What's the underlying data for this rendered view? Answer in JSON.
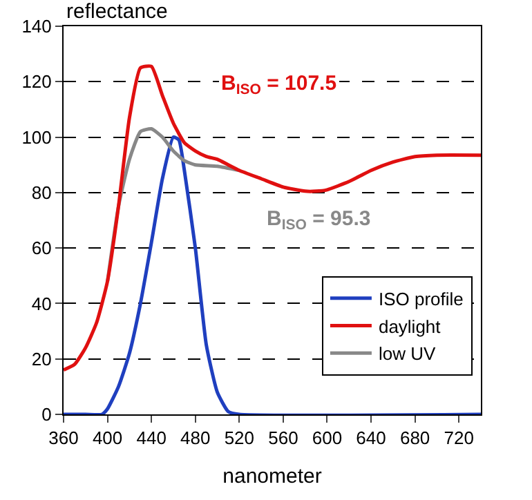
{
  "chart_data": {
    "type": "line",
    "xlabel": "nanometer",
    "ylabel": "reflectance",
    "xlim": [
      360,
      740
    ],
    "xticks": [
      360,
      400,
      440,
      480,
      520,
      560,
      600,
      640,
      680,
      720
    ],
    "ylim": [
      0,
      140
    ],
    "yticks": [
      0,
      20,
      40,
      60,
      80,
      100,
      120,
      140
    ],
    "grid": "y",
    "legend": "bottom right",
    "marker": "none",
    "line_style": "solid",
    "series": [
      {
        "name": "ISO profile",
        "color": "#1f3fbf",
        "x": [
          360,
          380,
          395,
          400,
          410,
          420,
          430,
          440,
          450,
          460,
          465,
          470,
          480,
          490,
          500,
          510,
          520,
          740
        ],
        "values": [
          0,
          0,
          0,
          2,
          10,
          22,
          40,
          62,
          85,
          100,
          99,
          88,
          60,
          25,
          8,
          1,
          0,
          0
        ]
      },
      {
        "name": "low UV",
        "color": "#888888",
        "x": [
          400,
          410,
          420,
          430,
          440,
          450,
          460,
          470,
          480,
          500,
          520
        ],
        "values": [
          48,
          75,
          92,
          102,
          103,
          100,
          95,
          91.5,
          90,
          89.5,
          88
        ]
      },
      {
        "name": "daylight",
        "color": "#e01010",
        "x": [
          360,
          370,
          380,
          390,
          400,
          410,
          420,
          430,
          440,
          450,
          460,
          470,
          480,
          490,
          500,
          510,
          520,
          540,
          560,
          580,
          590,
          600,
          620,
          640,
          660,
          680,
          700,
          740
        ],
        "values": [
          16,
          18,
          24,
          33,
          48,
          75,
          107,
          125,
          125.5,
          115,
          105,
          98,
          95,
          93,
          92,
          90,
          88,
          85,
          82,
          80.5,
          80.5,
          81,
          84,
          88,
          91,
          93,
          93.5,
          93.5
        ]
      }
    ],
    "annotations": [
      "B$_{ISO}$ = 107.5",
      "B$_{ISO}$ = 95.3"
    ]
  }
}
